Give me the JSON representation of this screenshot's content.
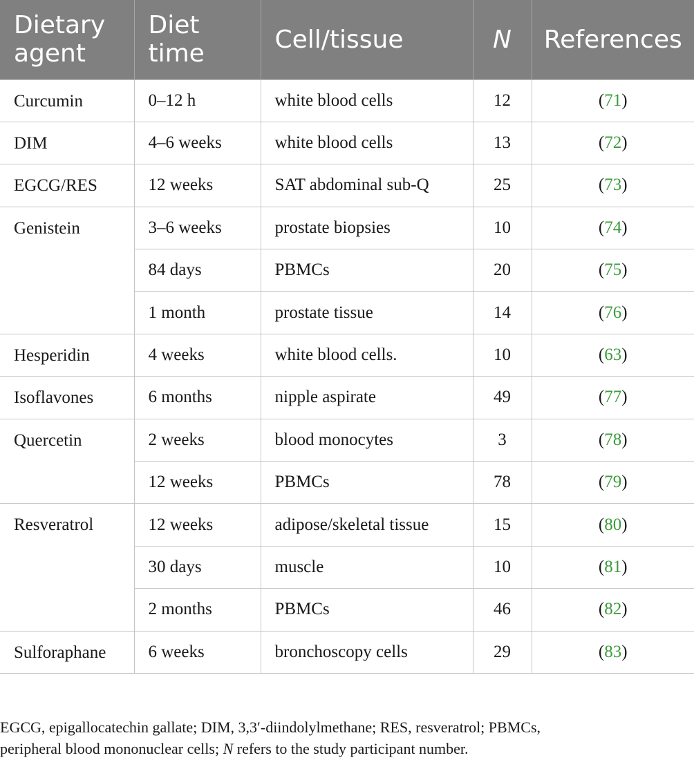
{
  "header": {
    "agent": [
      "Dietary",
      "agent"
    ],
    "time": [
      "Diet",
      "time"
    ],
    "tissue": "Cell/tissue",
    "n": "N",
    "ref": "References"
  },
  "groups": [
    {
      "agent": "Curcumin",
      "rows": [
        {
          "time": "0–12 h",
          "tissue": "white blood cells",
          "n": "12",
          "ref": "71"
        }
      ]
    },
    {
      "agent": "DIM",
      "rows": [
        {
          "time": "4–6 weeks",
          "tissue": "white blood cells",
          "n": "13",
          "ref": "72"
        }
      ]
    },
    {
      "agent": "EGCG/RES",
      "rows": [
        {
          "time": "12 weeks",
          "tissue": "SAT abdominal sub-Q",
          "n": "25",
          "ref": "73"
        }
      ]
    },
    {
      "agent": "Genistein",
      "rows": [
        {
          "time": "3–6 weeks",
          "tissue": "prostate biopsies",
          "n": "10",
          "ref": "74"
        },
        {
          "time": "84 days",
          "tissue": "PBMCs",
          "n": "20",
          "ref": "75"
        },
        {
          "time": "1 month",
          "tissue": "prostate tissue",
          "n": "14",
          "ref": "76"
        }
      ]
    },
    {
      "agent": "Hesperidin",
      "rows": [
        {
          "time": "4 weeks",
          "tissue": "white blood cells.",
          "n": "10",
          "ref": "63"
        }
      ]
    },
    {
      "agent": "Isoflavones",
      "rows": [
        {
          "time": "6 months",
          "tissue": "nipple aspirate",
          "n": "49",
          "ref": "77"
        }
      ]
    },
    {
      "agent": "Quercetin",
      "rows": [
        {
          "time": "2 weeks",
          "tissue": "blood monocytes",
          "n": "3",
          "ref": "78"
        },
        {
          "time": "12 weeks",
          "tissue": "PBMCs",
          "n": "78",
          "ref": "79"
        }
      ]
    },
    {
      "agent": "Resveratrol",
      "rows": [
        {
          "time": "12 weeks",
          "tissue": "adipose/skeletal tissue",
          "n": "15",
          "ref": "80"
        },
        {
          "time": "30 days",
          "tissue": "muscle",
          "n": "10",
          "ref": "81"
        },
        {
          "time": "2 months",
          "tissue": "PBMCs",
          "n": "46",
          "ref": "82"
        }
      ]
    },
    {
      "agent": "Sulforaphane",
      "rows": [
        {
          "time": "6 weeks",
          "tissue": "bronchoscopy cells",
          "n": "29",
          "ref": "83"
        }
      ]
    }
  ],
  "footnote": {
    "line1": "EGCG, epigallocatechin gallate; DIM, 3,3′-diindolylmethane; RES, resveratrol; PBMCs,",
    "line2_pre": "peripheral blood mononuclear cells; ",
    "line2_n": "N",
    "line2_post": " refers to the study participant number."
  },
  "colors": {
    "header_bg": "#808080",
    "ref_link": "#3a9c3a",
    "rule": "#c4c4c4"
  }
}
